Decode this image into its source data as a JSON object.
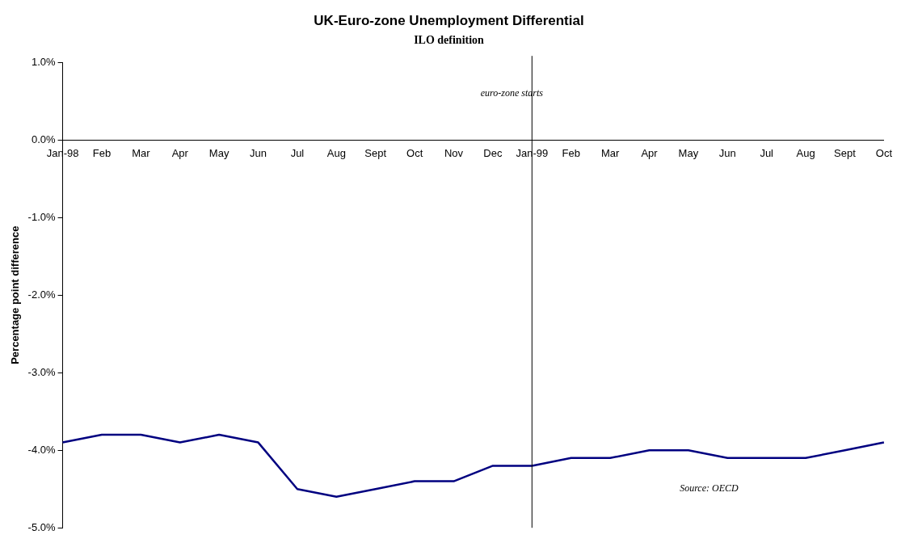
{
  "chart_data": {
    "type": "line",
    "title": "UK-Euro-zone Unemployment Differential",
    "subtitle": "ILO definition",
    "ylabel": "Percentage point difference",
    "categories": [
      "Jan-98",
      "Feb",
      "Mar",
      "Apr",
      "May",
      "Jun",
      "Jul",
      "Aug",
      "Sept",
      "Oct",
      "Nov",
      "Dec",
      "Jan-99",
      "Feb",
      "Mar",
      "Apr",
      "May",
      "Jun",
      "Jul",
      "Aug",
      "Sept",
      "Oct"
    ],
    "series": [
      {
        "color": "#000080",
        "values": [
          -3.9,
          -3.8,
          -3.8,
          -3.9,
          -3.8,
          -3.9,
          -4.5,
          -4.6,
          -4.5,
          -4.4,
          -4.4,
          -4.2,
          -4.2,
          -4.1,
          -4.1,
          -4.0,
          -4.0,
          -4.1,
          -4.1,
          -4.1,
          -4.0,
          -3.9
        ]
      }
    ],
    "ylim": [
      -5,
      1
    ],
    "yticks": [
      {
        "value": 1,
        "label": "1.0%"
      },
      {
        "value": 0,
        "label": "0.0%"
      },
      {
        "value": -1,
        "label": "-1.0%"
      },
      {
        "value": -2,
        "label": "-2.0%"
      },
      {
        "value": -3,
        "label": "-3.0%"
      },
      {
        "value": -4,
        "label": "-4.0%"
      },
      {
        "value": -5,
        "label": "-5.0%"
      }
    ],
    "ref_lines": [
      {
        "axis": "x",
        "value": "Jan-99",
        "label": "euro-zone starts",
        "color": "#000000"
      }
    ],
    "annotations": [
      "Source: OECD"
    ],
    "grid": false,
    "legend": false,
    "marker": "none",
    "line_style": "solid"
  }
}
